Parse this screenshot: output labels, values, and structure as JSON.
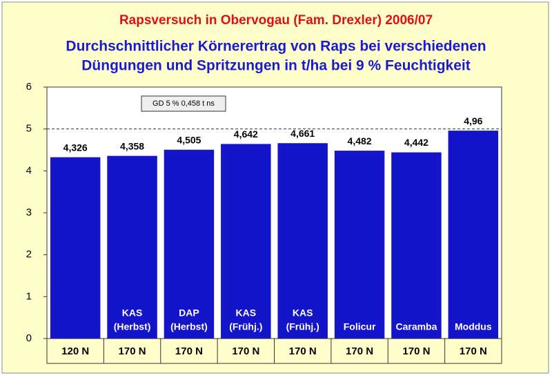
{
  "chart_data": {
    "type": "bar",
    "title": "Rapsversuch in Obervogau (Fam. Drexler) 2006/07",
    "subtitle": [
      "Durchschnittlicher Körnerertrag von Raps bei verschiedenen",
      "Düngungen und Spritzungen in t/ha bei 9 % Feuchtigkeit"
    ],
    "annotation": "GD 5 % 0,458 t ns",
    "categories": [
      "120 N",
      "170 N",
      "170 N",
      "170 N",
      "170 N",
      "170 N",
      "170 N",
      "170 N"
    ],
    "bar_labels": [
      null,
      [
        "KAS",
        "(Herbst)"
      ],
      [
        "DAP",
        "(Herbst)"
      ],
      [
        "KAS",
        "(Frühj.)"
      ],
      [
        "KAS",
        "(Frühj.)"
      ],
      [
        "Folicur"
      ],
      [
        "Caramba"
      ],
      [
        "Moddus"
      ]
    ],
    "values": [
      4.326,
      4.358,
      4.505,
      4.642,
      4.661,
      4.482,
      4.442,
      4.96
    ],
    "value_labels": [
      "4,326",
      "4,358",
      "4,505",
      "4,642",
      "4,661",
      "4,482",
      "4,442",
      "4,96"
    ],
    "color": "#1414c8",
    "ylim": [
      0,
      6
    ],
    "yticks": [
      0,
      1,
      2,
      3,
      4,
      5,
      6
    ],
    "reference_line": 5
  }
}
